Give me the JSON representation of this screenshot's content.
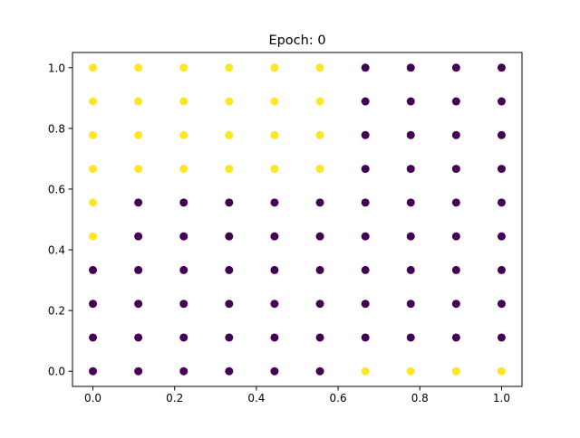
{
  "chart_data": {
    "type": "scatter",
    "title": "Epoch: 0",
    "xlabel": "",
    "ylabel": "",
    "xlim": [
      -0.05,
      1.05
    ],
    "ylim": [
      -0.05,
      1.05
    ],
    "xticks": [
      "0.0",
      "0.2",
      "0.4",
      "0.6",
      "0.8",
      "1.0"
    ],
    "yticks": [
      "0.0",
      "0.2",
      "0.4",
      "0.6",
      "0.8",
      "1.0"
    ],
    "grid": false,
    "colors": {
      "class_0": "#440154",
      "class_1": "#fde725"
    },
    "grid_values": [
      0.0,
      0.1111,
      0.2222,
      0.3333,
      0.4444,
      0.5556,
      0.6667,
      0.7778,
      0.8889,
      1.0
    ],
    "labels_by_row_top_to_bottom": [
      [
        1,
        1,
        1,
        1,
        1,
        1,
        0,
        0,
        0,
        0
      ],
      [
        1,
        1,
        1,
        1,
        1,
        1,
        0,
        0,
        0,
        0
      ],
      [
        1,
        1,
        1,
        1,
        1,
        1,
        0,
        0,
        0,
        0
      ],
      [
        1,
        1,
        1,
        1,
        1,
        1,
        0,
        0,
        0,
        0
      ],
      [
        1,
        0,
        0,
        0,
        0,
        0,
        0,
        0,
        0,
        0
      ],
      [
        1,
        0,
        0,
        0,
        0,
        0,
        0,
        0,
        0,
        0
      ],
      [
        0,
        0,
        0,
        0,
        0,
        0,
        0,
        0,
        0,
        0
      ],
      [
        0,
        0,
        0,
        0,
        0,
        0,
        0,
        0,
        0,
        0
      ],
      [
        0,
        0,
        0,
        0,
        0,
        0,
        0,
        0,
        0,
        0
      ],
      [
        0,
        0,
        0,
        0,
        0,
        0,
        1,
        1,
        1,
        1
      ]
    ]
  }
}
